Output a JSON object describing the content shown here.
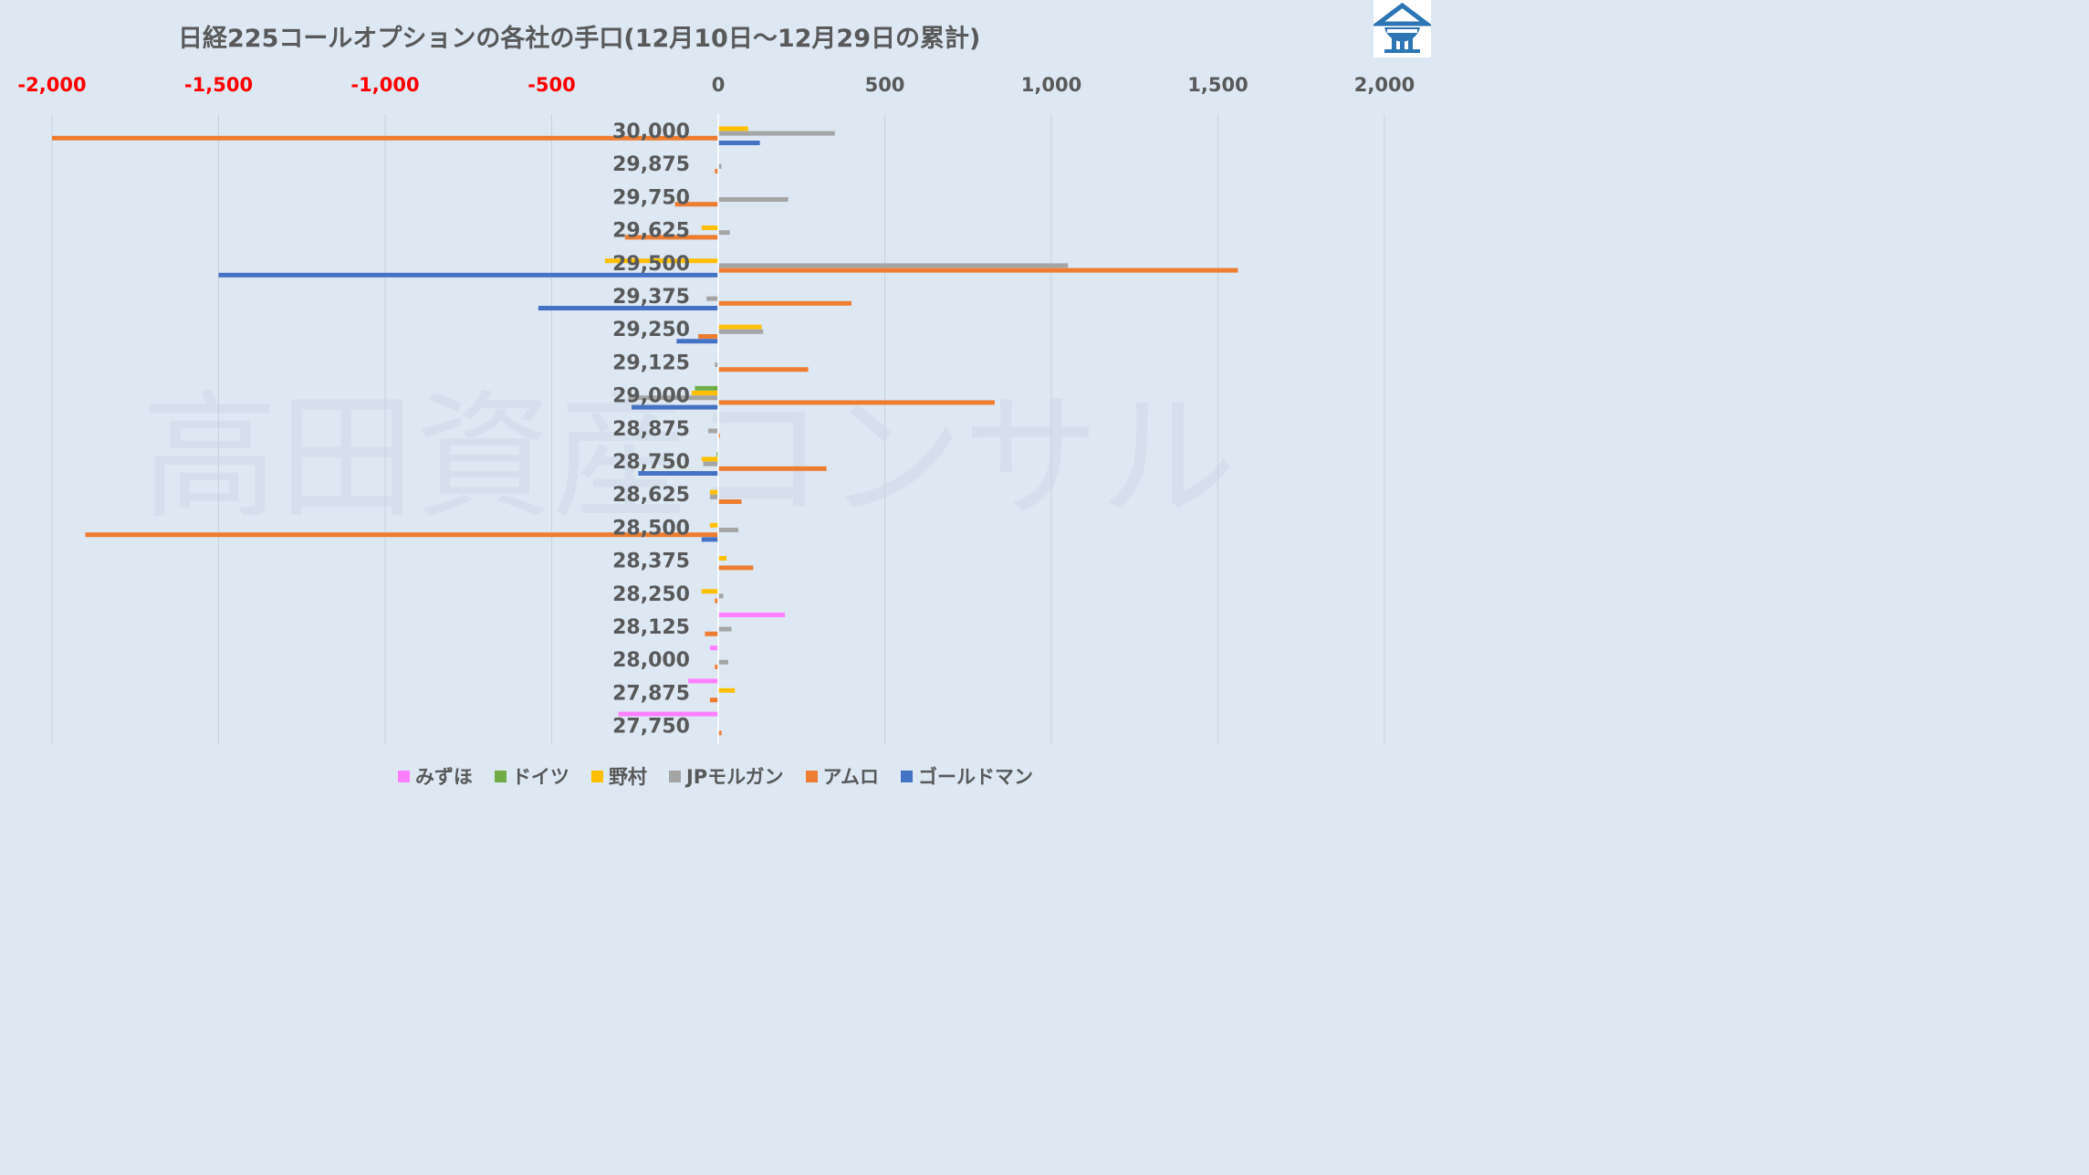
{
  "chart_data": {
    "type": "bar",
    "orientation": "horizontal",
    "title": "日経225コールオプションの各社の手口(12月10日～12月29日の累計)",
    "watermark": "高田資産コンサル",
    "xlim": [
      -2000,
      2000
    ],
    "x_ticks": [
      -2000,
      -1500,
      -1000,
      -500,
      0,
      500,
      1000,
      1500,
      2000
    ],
    "x_tick_labels": [
      "-2,000",
      "-1,500",
      "-1,000",
      "-500",
      "0",
      "500",
      "1,000",
      "1,500",
      "2,000"
    ],
    "negative_tick_color": "#ff0000",
    "tick_color": "#595959",
    "grid": true,
    "legend_position": "bottom",
    "categories": [
      "30,000",
      "29,875",
      "29,750",
      "29,625",
      "29,500",
      "29,375",
      "29,250",
      "29,125",
      "29,000",
      "28,875",
      "28,750",
      "28,625",
      "28,500",
      "28,375",
      "28,250",
      "28,125",
      "28,000",
      "27,875",
      "27,750"
    ],
    "series": [
      {
        "name": "みずほ",
        "color": "#ff80ff",
        "values": [
          0,
          0,
          0,
          0,
          0,
          0,
          0,
          0,
          0,
          0,
          0,
          0,
          0,
          0,
          0,
          200,
          -25,
          -90,
          -300
        ]
      },
      {
        "name": "ドイツ",
        "color": "#70ad47",
        "values": [
          0,
          0,
          0,
          0,
          0,
          0,
          0,
          0,
          -70,
          0,
          -5,
          0,
          0,
          0,
          0,
          0,
          0,
          0,
          0
        ]
      },
      {
        "name": "野村",
        "color": "#ffc000",
        "values": [
          90,
          0,
          0,
          -50,
          -340,
          0,
          130,
          0,
          -80,
          0,
          -50,
          -25,
          -25,
          25,
          -50,
          0,
          0,
          50,
          0
        ]
      },
      {
        "name": "JPモルガン",
        "color": "#a5a5a5",
        "values": [
          350,
          10,
          210,
          35,
          1050,
          -35,
          135,
          -10,
          -270,
          -30,
          -45,
          -25,
          60,
          0,
          15,
          40,
          30,
          0,
          0
        ]
      },
      {
        "name": "アムロ",
        "color": "#ed7d31",
        "values": [
          -2000,
          -10,
          -130,
          -280,
          1560,
          400,
          -60,
          270,
          830,
          5,
          325,
          70,
          -1900,
          105,
          -10,
          -40,
          -10,
          -25,
          10
        ]
      },
      {
        "name": "ゴールドマン",
        "color": "#4472c4",
        "values": [
          125,
          0,
          0,
          0,
          -1500,
          -540,
          -125,
          0,
          -260,
          0,
          -240,
          0,
          -50,
          0,
          0,
          0,
          0,
          0,
          0
        ]
      }
    ]
  },
  "logo": {
    "name": "brand-logo",
    "color": "#2e75b6"
  }
}
